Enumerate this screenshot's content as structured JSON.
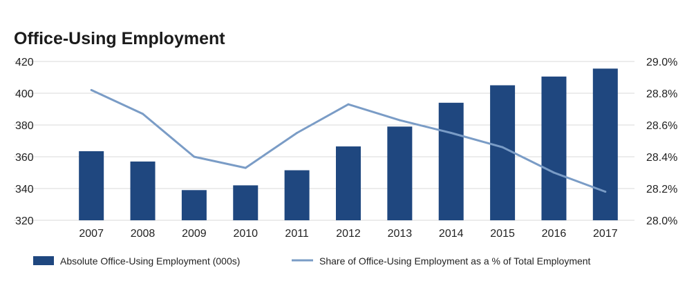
{
  "chart_data": {
    "type": "bar",
    "title": "Office-Using Employment",
    "categories": [
      "2007",
      "2008",
      "2009",
      "2010",
      "2011",
      "2012",
      "2013",
      "2014",
      "2015",
      "2016",
      "2017"
    ],
    "series": [
      {
        "name": "Absolute Office-Using Employment (000s)",
        "type": "bar",
        "axis": "left",
        "color": "#1f477f",
        "values": [
          363.5,
          357,
          339,
          342,
          351.5,
          366.5,
          379,
          394,
          405,
          410.5,
          415.5
        ]
      },
      {
        "name": "Share of Office-Using Employment as a % of Total Employment",
        "type": "line",
        "axis": "right",
        "color": "#7a9cc6",
        "values": [
          28.82,
          28.67,
          28.4,
          28.33,
          28.55,
          28.73,
          28.63,
          28.55,
          28.46,
          28.3,
          28.18
        ]
      }
    ],
    "y_left": {
      "min": 320,
      "max": 420,
      "ticks": [
        "320",
        "340",
        "360",
        "380",
        "400",
        "420"
      ]
    },
    "y_right": {
      "min": 28.0,
      "max": 29.0,
      "ticks": [
        "28.0%",
        "28.2%",
        "28.4%",
        "28.6%",
        "28.8%",
        "29.0%"
      ]
    },
    "grid": true,
    "legend_position": "bottom"
  }
}
